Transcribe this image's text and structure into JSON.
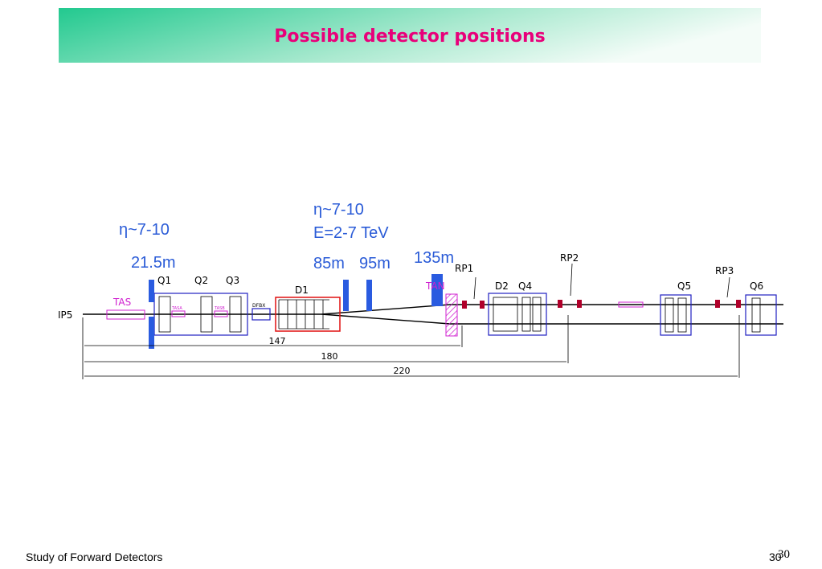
{
  "header": {
    "title": "Possible detector positions"
  },
  "annotations": {
    "eta_left": "η~7-10",
    "pos_left": "21.5m",
    "eta_right": "η~7-10",
    "energy": "E=2-7 TeV",
    "pos_85": "85m",
    "pos_95": "95m",
    "pos_135": "135m"
  },
  "labels": {
    "ip": "IP5",
    "tas": "TAS",
    "q1": "Q1",
    "q2": "Q2",
    "q3": "Q3",
    "tasa": "TASA",
    "tasb": "TASB",
    "dfbx": "DFBX",
    "d1": "D1",
    "tan": "TAN",
    "rp1": "RP1",
    "d2": "D2",
    "q4": "Q4",
    "rp2": "RP2",
    "q5": "Q5",
    "rp3": "RP3",
    "q6": "Q6"
  },
  "dimensions": {
    "d147": "147",
    "d180": "180",
    "d220": "220"
  },
  "footer": {
    "text": "Study of Forward Detectors",
    "page": "30",
    "page_overlay": "30"
  }
}
